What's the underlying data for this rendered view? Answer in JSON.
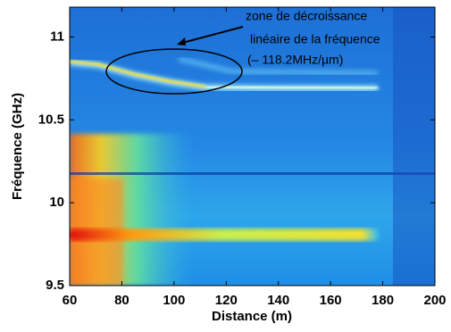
{
  "chart_data": {
    "type": "heatmap",
    "xlabel": "Distance (m)",
    "ylabel": "Fréquence (GHz)",
    "xlim": [
      60,
      200
    ],
    "xticks": [
      60,
      80,
      100,
      120,
      140,
      160,
      180,
      200
    ],
    "ylim": [
      9.5,
      11.18
    ],
    "yticks": [
      9.5,
      10,
      10.5,
      11
    ],
    "annotation": [
      "zone de décroissance",
      "linéaire de la fréquence",
      "(– 118.2MHz/µm)"
    ]
  }
}
